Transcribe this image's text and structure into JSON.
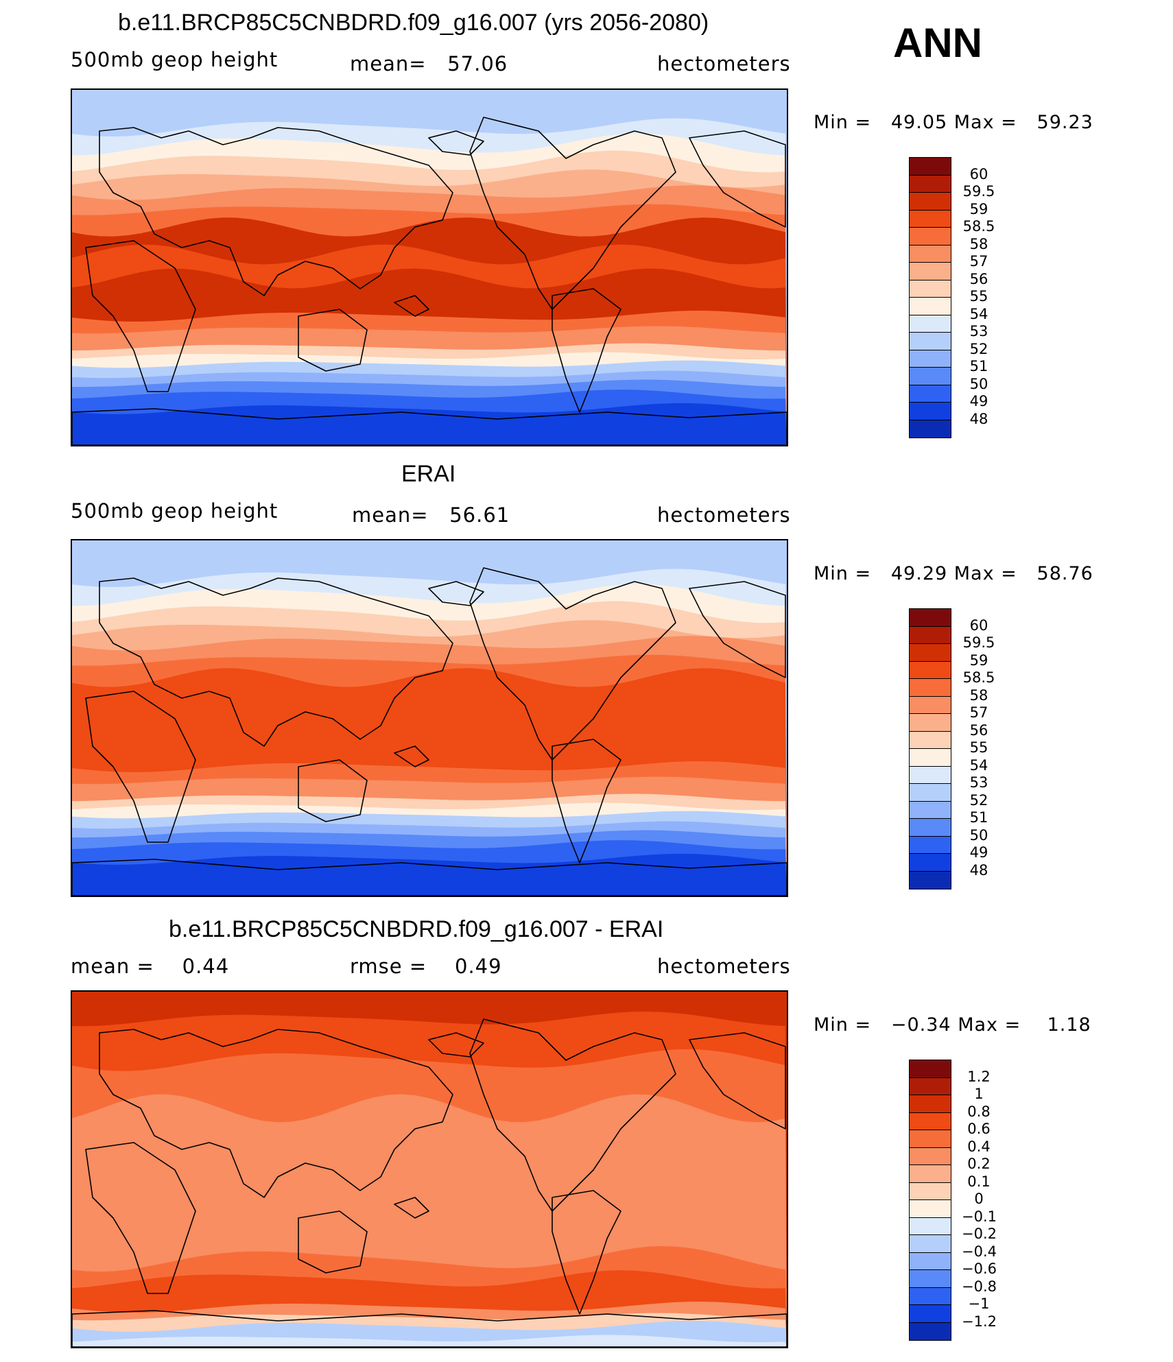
{
  "season": "ANN",
  "panels": [
    {
      "title": "b.e11.BRCP85C5CNBDRD.f09_g16.007 (yrs 2056-2080)",
      "left_label": "500mb geop height",
      "center_label": "mean=",
      "center_value": "57.06",
      "right_label": "hectometers",
      "min_label": "Min =",
      "min_value": "49.05",
      "max_label": "Max =",
      "max_value": "59.23",
      "colorbar": {
        "labels": [
          "60",
          "59.5",
          "59",
          "58.5",
          "58",
          "57",
          "56",
          "55",
          "54",
          "53",
          "52",
          "51",
          "50",
          "49",
          "48"
        ],
        "colors": [
          "#7d0a0a",
          "#b01d06",
          "#d13004",
          "#ef4b14",
          "#f76d3a",
          "#f88e62",
          "#fab08b",
          "#fdd2b6",
          "#fef1e2",
          "#dbe9fb",
          "#b5cffb",
          "#8fb2fb",
          "#5a8af8",
          "#2e62f2",
          "#1040e0",
          "#0a2cb4",
          "#05147a"
        ]
      },
      "map_style": "model"
    },
    {
      "title": "ERAI",
      "left_label": "500mb geop height",
      "center_label": "mean=",
      "center_value": "56.61",
      "right_label": "hectometers",
      "min_label": "Min =",
      "min_value": "49.29",
      "max_label": "Max =",
      "max_value": "58.76",
      "colorbar": {
        "labels": [
          "60",
          "59.5",
          "59",
          "58.5",
          "58",
          "57",
          "56",
          "55",
          "54",
          "53",
          "52",
          "51",
          "50",
          "49",
          "48"
        ],
        "colors": [
          "#7d0a0a",
          "#b01d06",
          "#d13004",
          "#ef4b14",
          "#f76d3a",
          "#f88e62",
          "#fab08b",
          "#fdd2b6",
          "#fef1e2",
          "#dbe9fb",
          "#b5cffb",
          "#8fb2fb",
          "#5a8af8",
          "#2e62f2",
          "#1040e0",
          "#0a2cb4",
          "#05147a"
        ]
      },
      "map_style": "obs"
    },
    {
      "title": "b.e11.BRCP85C5CNBDRD.f09_g16.007 - ERAI",
      "left_label": "mean =",
      "left_value": "0.44",
      "center_label": "rmse =",
      "center_value": "0.49",
      "right_label": "hectometers",
      "min_label": "Min =",
      "min_value": "−0.34",
      "max_label": "Max =",
      "max_value": "1.18",
      "colorbar": {
        "labels": [
          "1.2",
          "1",
          "0.8",
          "0.6",
          "0.4",
          "0.2",
          "0.1",
          "0",
          "−0.1",
          "−0.2",
          "−0.4",
          "−0.6",
          "−0.8",
          "−1",
          "−1.2"
        ],
        "colors": [
          "#7d0a0a",
          "#b01d06",
          "#d13004",
          "#ef4b14",
          "#f76d3a",
          "#f88e62",
          "#fab08b",
          "#fdd2b6",
          "#fef1e2",
          "#dbe9fb",
          "#b5cffb",
          "#8fb2fb",
          "#5a8af8",
          "#2e62f2",
          "#1040e0",
          "#0a2cb4",
          "#05147a"
        ]
      },
      "map_style": "diff"
    }
  ]
}
